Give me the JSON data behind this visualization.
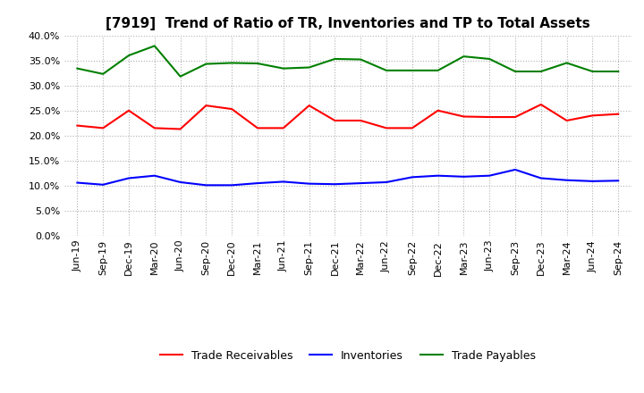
{
  "title": "[7919]  Trend of Ratio of TR, Inventories and TP to Total Assets",
  "x_labels": [
    "Jun-19",
    "Sep-19",
    "Dec-19",
    "Mar-20",
    "Jun-20",
    "Sep-20",
    "Dec-20",
    "Mar-21",
    "Jun-21",
    "Sep-21",
    "Dec-21",
    "Mar-22",
    "Jun-22",
    "Sep-22",
    "Dec-22",
    "Mar-23",
    "Jun-23",
    "Sep-23",
    "Dec-23",
    "Mar-24",
    "Jun-24",
    "Sep-24"
  ],
  "trade_receivables": [
    0.22,
    0.215,
    0.25,
    0.215,
    0.213,
    0.26,
    0.253,
    0.215,
    0.215,
    0.26,
    0.23,
    0.23,
    0.215,
    0.215,
    0.25,
    0.238,
    0.237,
    0.237,
    0.262,
    0.23,
    0.24,
    0.243
  ],
  "inventories": [
    0.106,
    0.102,
    0.115,
    0.12,
    0.107,
    0.101,
    0.101,
    0.105,
    0.108,
    0.104,
    0.103,
    0.105,
    0.107,
    0.117,
    0.12,
    0.118,
    0.12,
    0.132,
    0.115,
    0.111,
    0.109,
    0.11
  ],
  "trade_payables": [
    0.334,
    0.323,
    0.36,
    0.379,
    0.318,
    0.343,
    0.345,
    0.344,
    0.334,
    0.336,
    0.353,
    0.352,
    0.33,
    0.33,
    0.33,
    0.358,
    0.353,
    0.328,
    0.328,
    0.345,
    0.328,
    0.328
  ],
  "tr_color": "#ff0000",
  "inv_color": "#0000ff",
  "tp_color": "#008000",
  "ylim": [
    0.0,
    0.4
  ],
  "yticks": [
    0.0,
    0.05,
    0.1,
    0.15,
    0.2,
    0.25,
    0.3,
    0.35,
    0.4
  ],
  "background_color": "#ffffff",
  "grid_color": "#b0b0b0",
  "legend_labels": [
    "Trade Receivables",
    "Inventories",
    "Trade Payables"
  ],
  "title_fontsize": 11,
  "tick_fontsize": 8,
  "legend_fontsize": 9
}
